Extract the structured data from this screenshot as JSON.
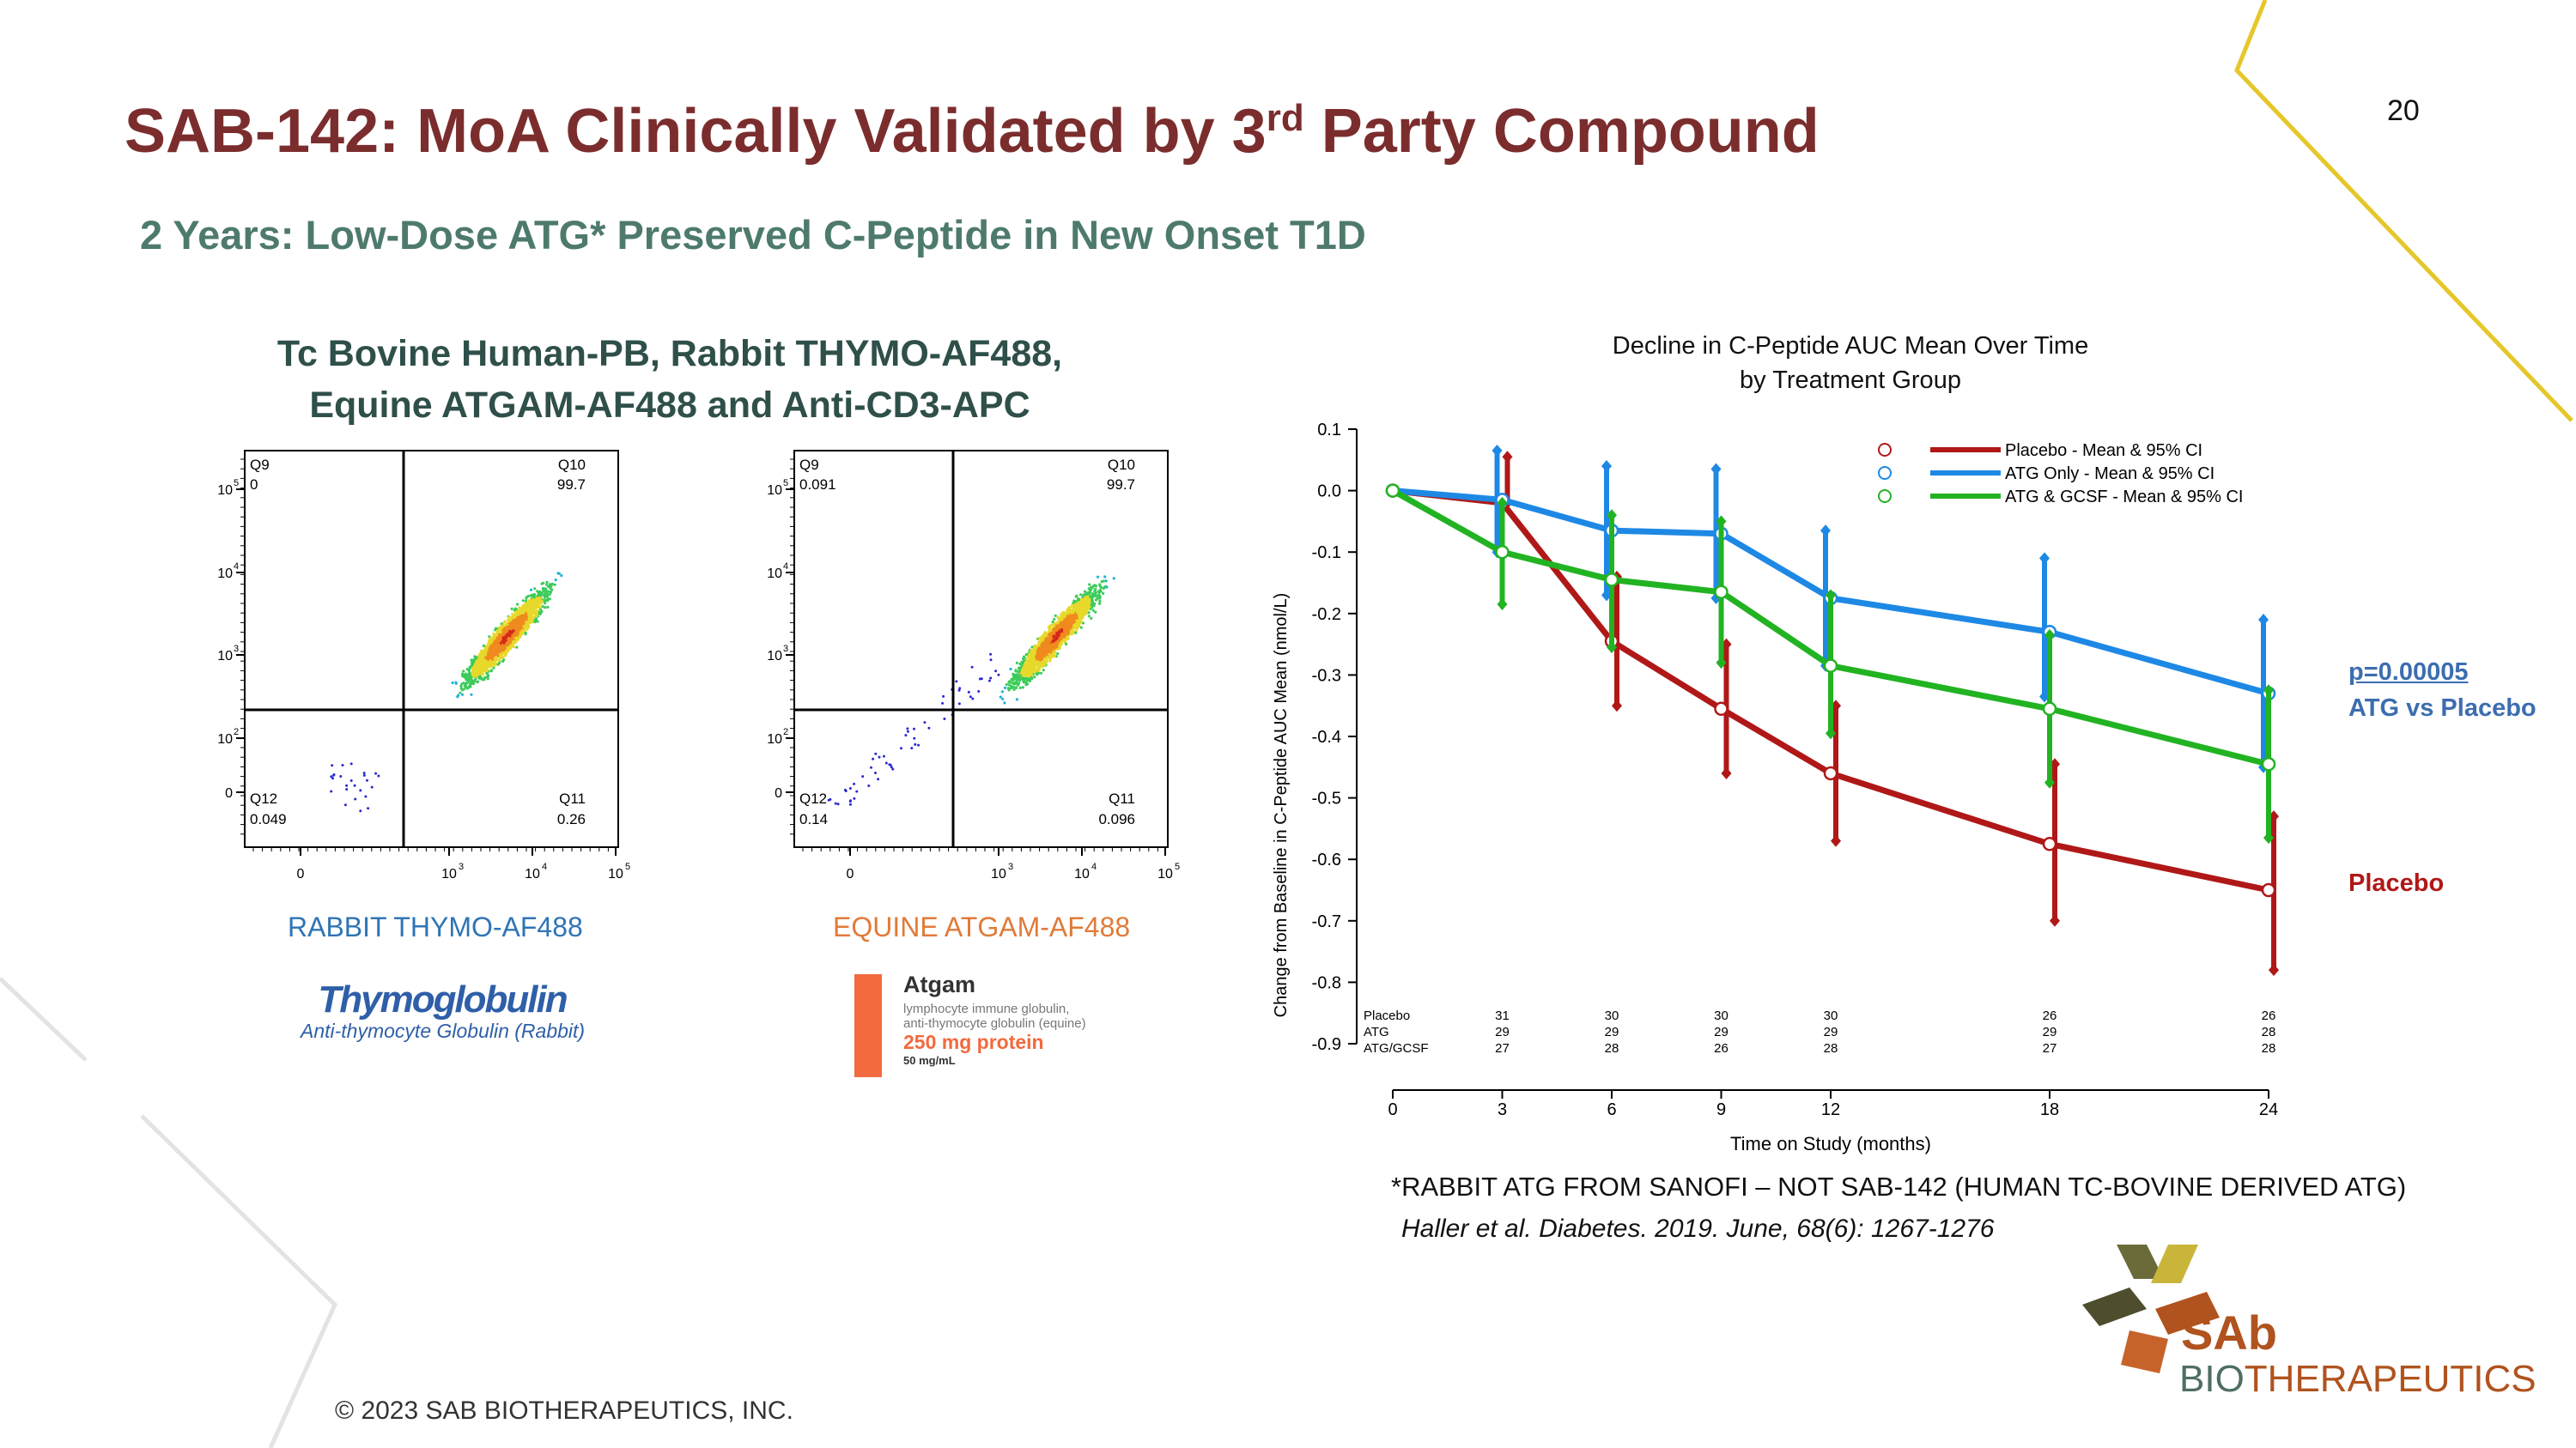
{
  "slide": {
    "title_main": "SAB-142: MoA Clinically Validated by 3",
    "title_sup": "rd",
    "title_end": " Party Compound",
    "subtitle": "2 Years: Low-Dose ATG* Preserved C-Peptide in New Onset T1D",
    "page_number": "20",
    "footer": "© 2023 SAB BIOTHERAPEUTICS, INC.",
    "footnote": "*RABBIT ATG FROM SANOFI – NOT SAB-142 (HUMAN TC-BOVINE DERIVED ATG)",
    "citation": "Haller et al. Diabetes. 2019. June, 68(6): 1267-1276",
    "pvalue": "p=0.00005",
    "pvalue_desc": "ATG vs Placebo",
    "placebo_label": "Placebo",
    "logo_line1": "SAb",
    "logo_line2a": "BIO",
    "logo_line2b": "THERAPEUTICS"
  },
  "flow": {
    "title_line1": "Tc Bovine Human-PB, Rabbit THYMO-AF488,",
    "title_line2": "Equine ATGAM-AF488 and Anti-CD3-APC",
    "plots": [
      {
        "label": "RABBIT THYMO-AF488",
        "label_color": "#2E75B6",
        "quadrants": {
          "q9": "Q9",
          "q9v": "0",
          "q10": "Q10",
          "q10v": "99.7",
          "q12": "Q12",
          "q12v": "0.049",
          "q11": "Q11",
          "q11v": "0.26"
        }
      },
      {
        "label": "EQUINE ATGAM-AF488",
        "label_color": "#E07B39",
        "quadrants": {
          "q9": "Q9",
          "q9v": "0.091",
          "q10": "Q10",
          "q10v": "99.7",
          "q12": "Q12",
          "q12v": "0.14",
          "q11": "Q11",
          "q11v": "0.096"
        }
      }
    ],
    "axis_ticks": {
      "y": [
        "10",
        "10",
        "10",
        "10",
        "0"
      ],
      "y_exp": [
        "5",
        "4",
        "3",
        "2",
        ""
      ],
      "x": [
        "0",
        "10",
        "10",
        "10"
      ],
      "x_exp": [
        "",
        "3",
        "4",
        "5"
      ]
    },
    "thymo_brand": "Thymoglobulin",
    "thymo_sub": "Anti-thymocyte Globulin (Rabbit)",
    "atgam_brand": "Atgam",
    "atgam_line1": "lymphocyte immune globulin,",
    "atgam_line2": "anti-thymocyte globulin (equine)",
    "atgam_dose": "250 mg protein",
    "atgam_conc": "50 mg/mL"
  },
  "chart_data": {
    "type": "line",
    "title_line1": "Decline in C-Peptide AUC Mean Over Time",
    "title_line2": "by Treatment Group",
    "xlabel": "Time on Study (months)",
    "ylabel": "Change from Baseline in C-Peptide AUC Mean (nmol/L)",
    "x": [
      0,
      3,
      6,
      9,
      12,
      18,
      24
    ],
    "xlim": [
      0,
      24
    ],
    "ylim": [
      -0.9,
      0.1
    ],
    "y_ticks": [
      "0.1",
      "0.0",
      "-0.1",
      "-0.2",
      "-0.3",
      "-0.4",
      "-0.5",
      "-0.6",
      "-0.7",
      "-0.8",
      "-0.9"
    ],
    "x_ticks": [
      "0",
      "3",
      "6",
      "9",
      "12",
      "18",
      "24"
    ],
    "series": [
      {
        "name": "Placebo - Mean & 95% CI",
        "short": "Placebo",
        "color": "#B01818",
        "values": [
          0.0,
          -0.02,
          -0.245,
          -0.355,
          -0.46,
          -0.575,
          -0.65
        ],
        "lower": [
          0.0,
          -0.02,
          -0.35,
          -0.46,
          -0.57,
          -0.7,
          -0.78
        ],
        "upper": [
          0.0,
          0.055,
          -0.14,
          -0.25,
          -0.35,
          -0.445,
          -0.53
        ],
        "n_at_risk": [
          "31",
          "30",
          "30",
          "30",
          "26",
          "26"
        ]
      },
      {
        "name": "ATG Only - Mean & 95% CI",
        "short": "ATG",
        "color": "#1E88E5",
        "values": [
          0.0,
          -0.015,
          -0.065,
          -0.07,
          -0.175,
          -0.23,
          -0.33
        ],
        "lower": [
          0.0,
          -0.1,
          -0.17,
          -0.175,
          -0.285,
          -0.335,
          -0.45
        ],
        "upper": [
          0.0,
          0.065,
          0.04,
          0.035,
          -0.065,
          -0.11,
          -0.21
        ],
        "n_at_risk": [
          "29",
          "29",
          "29",
          "29",
          "29",
          "28"
        ]
      },
      {
        "name": "ATG & GCSF - Mean & 95% CI",
        "short": "ATG/GCSF",
        "color": "#22B322",
        "values": [
          0.0,
          -0.1,
          -0.145,
          -0.165,
          -0.285,
          -0.355,
          -0.445
        ],
        "lower": [
          0.0,
          -0.185,
          -0.255,
          -0.28,
          -0.395,
          -0.475,
          -0.565
        ],
        "upper": [
          0.0,
          -0.02,
          -0.04,
          -0.05,
          -0.17,
          -0.235,
          -0.325
        ],
        "n_at_risk": [
          "27",
          "28",
          "26",
          "28",
          "27",
          "28"
        ]
      }
    ]
  }
}
